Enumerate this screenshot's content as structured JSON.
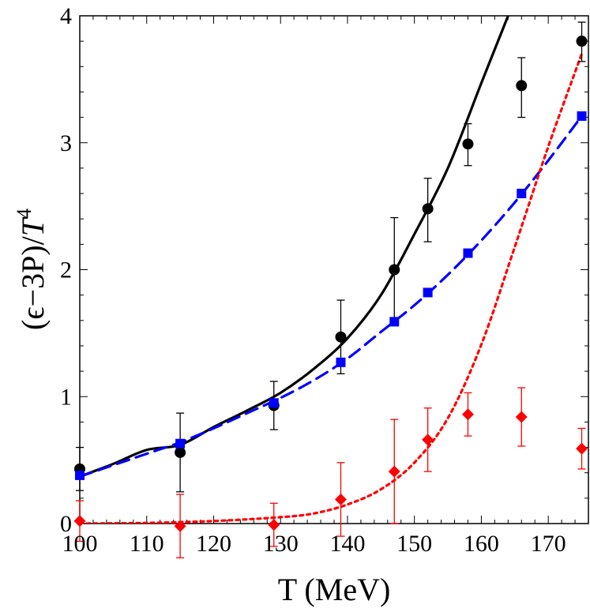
{
  "chart_data": {
    "type": "scatter",
    "title": "",
    "xlabel": "T (MeV)",
    "ylabel_main": "(ϵ−3P)/",
    "ylabel_italic": "T",
    "ylabel_sup": "4",
    "xlim": [
      100,
      176
    ],
    "ylim": [
      0,
      4
    ],
    "grid": false,
    "legend": "none",
    "x_ticks": [
      100,
      110,
      120,
      130,
      140,
      150,
      160,
      170
    ],
    "y_ticks": [
      0,
      1,
      2,
      3,
      4
    ],
    "series": [
      {
        "marker": "circle",
        "color": "#000000",
        "points": [
          {
            "x": 100,
            "y": 0.43,
            "err_low": 0.17,
            "err_high": 0.17
          },
          {
            "x": 115,
            "y": 0.56,
            "err_low": 0.31,
            "err_high": 0.31
          },
          {
            "x": 129,
            "y": 0.93,
            "err_low": 0.19,
            "err_high": 0.19
          },
          {
            "x": 139,
            "y": 1.47,
            "err_low": 0.29,
            "err_high": 0.29
          },
          {
            "x": 147,
            "y": 2.0,
            "err_low": 0.41,
            "err_high": 0.41
          },
          {
            "x": 152,
            "y": 2.48,
            "err_low": 0.26,
            "err_high": 0.24
          },
          {
            "x": 158,
            "y": 2.99,
            "err_low": 0.17,
            "err_high": 0.16
          },
          {
            "x": 166,
            "y": 3.45,
            "err_low": 0.25,
            "err_high": 0.22
          },
          {
            "x": 175,
            "y": 3.8,
            "err_low": 0.16,
            "err_high": 0.15
          }
        ]
      },
      {
        "marker": "square",
        "color": "#0000ff",
        "points": [
          {
            "x": 100,
            "y": 0.38
          },
          {
            "x": 115,
            "y": 0.63
          },
          {
            "x": 129,
            "y": 0.95
          },
          {
            "x": 139,
            "y": 1.27
          },
          {
            "x": 147,
            "y": 1.59
          },
          {
            "x": 152,
            "y": 1.82
          },
          {
            "x": 158,
            "y": 2.13
          },
          {
            "x": 166,
            "y": 2.6
          },
          {
            "x": 175,
            "y": 3.21
          }
        ]
      },
      {
        "marker": "diamond",
        "color": "#ff0000",
        "points": [
          {
            "x": 100,
            "y": 0.02,
            "err_low": 0.16,
            "err_high": 0.16
          },
          {
            "x": 115,
            "y": -0.02,
            "err_low": 0.25,
            "err_high": 0.25
          },
          {
            "x": 129,
            "y": -0.01,
            "err_low": 0.17,
            "err_high": 0.17
          },
          {
            "x": 139,
            "y": 0.19,
            "err_low": 0.29,
            "err_high": 0.29
          },
          {
            "x": 147,
            "y": 0.41,
            "err_low": 0.41,
            "err_high": 0.41
          },
          {
            "x": 152,
            "y": 0.66,
            "err_low": 0.25,
            "err_high": 0.25
          },
          {
            "x": 158,
            "y": 0.86,
            "err_low": 0.17,
            "err_high": 0.17
          },
          {
            "x": 166,
            "y": 0.84,
            "err_low": 0.23,
            "err_high": 0.23
          },
          {
            "x": 175,
            "y": 0.59,
            "err_low": 0.16,
            "err_high": 0.16
          }
        ]
      }
    ],
    "curves": [
      {
        "style": "solid",
        "color": "#000000",
        "points": [
          [
            100,
            0.37
          ],
          [
            105,
            0.47
          ],
          [
            110,
            0.58
          ],
          [
            115,
            0.62
          ],
          [
            120,
            0.76
          ],
          [
            125,
            0.89
          ],
          [
            130,
            1.03
          ],
          [
            135,
            1.22
          ],
          [
            140,
            1.46
          ],
          [
            145,
            1.8
          ],
          [
            150,
            2.28
          ],
          [
            155,
            2.8
          ],
          [
            160,
            3.47
          ],
          [
            164,
            4.0
          ]
        ]
      },
      {
        "style": "dashed",
        "color": "#0000ff",
        "points": [
          [
            100,
            0.37
          ],
          [
            105,
            0.46
          ],
          [
            110,
            0.55
          ],
          [
            115,
            0.64
          ],
          [
            120,
            0.75
          ],
          [
            125,
            0.87
          ],
          [
            130,
            0.99
          ],
          [
            135,
            1.13
          ],
          [
            140,
            1.3
          ],
          [
            145,
            1.51
          ],
          [
            150,
            1.72
          ],
          [
            155,
            1.96
          ],
          [
            160,
            2.23
          ],
          [
            165,
            2.53
          ],
          [
            170,
            2.86
          ],
          [
            175,
            3.21
          ]
        ]
      },
      {
        "style": "dotted",
        "color": "#ff0000",
        "points": [
          [
            100,
            0.0
          ],
          [
            110,
            0.005
          ],
          [
            120,
            0.02
          ],
          [
            130,
            0.05
          ],
          [
            135,
            0.08
          ],
          [
            140,
            0.15
          ],
          [
            145,
            0.27
          ],
          [
            150,
            0.48
          ],
          [
            155,
            0.83
          ],
          [
            160,
            1.41
          ],
          [
            165,
            2.18
          ],
          [
            170,
            2.97
          ],
          [
            175,
            3.7
          ]
        ]
      }
    ]
  }
}
